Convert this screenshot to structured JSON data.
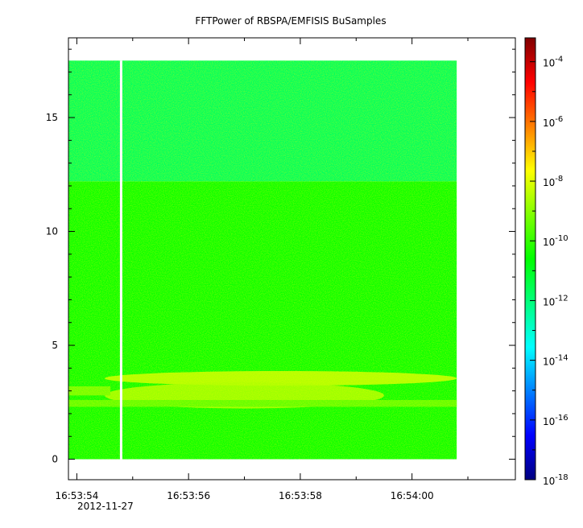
{
  "chart_data": {
    "type": "heatmap",
    "title": "FFTPower of RBSPA/EMFISIS  BuSamples",
    "xlabel": "",
    "ylabel": "",
    "x": {
      "ticks": [
        "16:53:54",
        "16:53:56",
        "16:53:58",
        "16:54:00"
      ],
      "tick_seconds": [
        54,
        56,
        58,
        60
      ],
      "date_label": "2012-11-27",
      "range_seconds": [
        53.85,
        61.85
      ],
      "minor_step_seconds": 1,
      "data_range_seconds": [
        53.85,
        60.8
      ]
    },
    "y": {
      "ticks": [
        "0",
        "5",
        "10",
        "15"
      ],
      "tick_values": [
        0,
        5,
        10,
        15
      ],
      "range": [
        -0.9,
        18.5
      ],
      "minor_step": 1,
      "data_range": [
        0,
        17.5
      ]
    },
    "colorbar": {
      "scale": "log",
      "range_exponents": [
        -18,
        -3.2
      ],
      "tick_base": "10",
      "tick_exponents": [
        "-4",
        "-6",
        "-8",
        "-10",
        "-12",
        "-14",
        "-16",
        "-18"
      ],
      "colormap": [
        "#00007f",
        "#0000ff",
        "#007fff",
        "#00ffff",
        "#00ff7f",
        "#00ff00",
        "#7fff00",
        "#ffff00",
        "#ff7f00",
        "#ff0000",
        "#7f0000"
      ]
    },
    "gap_time_seconds": 54.8,
    "bands": [
      {
        "freq_range": [
          12.2,
          17.5
        ],
        "level_exponent": -11.7
      },
      {
        "freq_range": [
          0,
          12.2
        ],
        "level_exponent": -10.5
      },
      {
        "freq_range": [
          3.3,
          3.8
        ],
        "time_range": [
          54.5,
          60.8
        ],
        "level_exponent": -8.3
      },
      {
        "freq_range": [
          2.3,
          3.3
        ],
        "time_range": [
          54.5,
          59.5
        ],
        "level_exponent": -8.6
      },
      {
        "freq_range": [
          2.3,
          2.6
        ],
        "time_range": [
          53.85,
          60.8
        ],
        "level_exponent": -9.5
      },
      {
        "freq_range": [
          2.8,
          3.2
        ],
        "time_range": [
          53.85,
          54.6
        ],
        "level_exponent": -9.3
      }
    ]
  }
}
